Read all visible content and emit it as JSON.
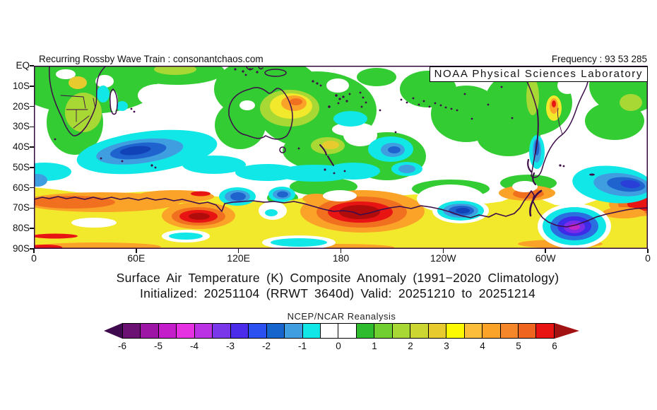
{
  "header": {
    "left": "Recurring Rossby Wave Train : consonantchaos.com",
    "right": "Frequency : 93 53 285"
  },
  "overlay": {
    "source_label": "NOAA Physical Sciences Laboratory"
  },
  "titles": {
    "line1": "Surface Air Temperature (K) Composite Anomaly (1991−2020 Climatology)",
    "line2": "Initialized: 20251104 (RRWT 3640d) Valid: 20251210 to 20251214"
  },
  "axes": {
    "y_ticks": [
      "EQ",
      "10S",
      "20S",
      "30S",
      "40S",
      "50S",
      "60S",
      "70S",
      "80S",
      "90S"
    ],
    "x_ticks": [
      "0",
      "60E",
      "120E",
      "180",
      "120W",
      "60W",
      "0"
    ]
  },
  "colorbar": {
    "label": "NCEP/NCAR Reanalysis",
    "tick_labels": [
      "-6",
      "-5",
      "-4",
      "-3",
      "-2",
      "-1",
      "0",
      "1",
      "2",
      "3",
      "4",
      "5",
      "6"
    ],
    "segment_colors": [
      "#6b1173",
      "#9c15a5",
      "#c31ec9",
      "#e531e1",
      "#bb31e4",
      "#7a37ea",
      "#4b2ceb",
      "#2c50f0",
      "#1565cd",
      "#3f9ee0",
      "#12e7e7",
      "#ffffff",
      "#ffffff",
      "#2ebc2e",
      "#71cf31",
      "#a8d833",
      "#ccd633",
      "#e7cb2e",
      "#fdf900",
      "#fcbe3a",
      "#fba328",
      "#f6862a",
      "#ef641f",
      "#e81414"
    ],
    "left_arrow_color": "#3f0a4d",
    "right_arrow_color": "#a31212"
  },
  "chart_data": {
    "type": "heatmap",
    "subtype": "filled_contour_map",
    "title": "Surface Air Temperature (K) Composite Anomaly (1991−2020 Climatology)",
    "subtitle": "Initialized: 20251104 (RRWT 3640d) Valid: 20251210 to 20251214",
    "dataset": "NCEP/NCAR Reanalysis",
    "attribution": "NOAA Physical Sciences Laboratory",
    "units": "K",
    "extent": {
      "lon": [
        0,
        360
      ],
      "lat_labels": [
        "EQ",
        "90S"
      ],
      "lat": [
        0,
        -90
      ]
    },
    "xlabel": "",
    "ylabel": "",
    "grid": false,
    "legend_position": "bottom-colorbar",
    "colorbar_levels": [
      -6,
      -5.5,
      -5,
      -4.5,
      -4,
      -3.5,
      -3,
      -2.5,
      -2,
      -1.5,
      -1,
      -0.5,
      0,
      0.5,
      1,
      1.5,
      2,
      2.5,
      3,
      3.5,
      4,
      4.5,
      5,
      5.5,
      6
    ],
    "coastline_color": "#3d0d49",
    "background_anomaly": "0 to +1 K (white/green) over most tropics and subtropics",
    "anomaly_features": [
      {
        "region": "south Indian Ocean",
        "lon": "50E-80E",
        "lat": "40S-48S",
        "value_K": -2.5
      },
      {
        "region": "central Australia",
        "lon": "128E-140E",
        "lat": "20S-28S",
        "value_K": 4.5
      },
      {
        "region": "circumpolar Antarctic band",
        "lon": "0-360",
        "lat": "60S-90S",
        "value_K": "+2 to +4"
      },
      {
        "region": "East Antarctica (Wilkes Land)",
        "lon": "88E-105E",
        "lat": "71S-77S",
        "value_K": 6
      },
      {
        "region": "Indian-sector Southern Ocean band",
        "lon": "0-80E",
        "lat": "62S-68S",
        "value_K": "+4 to +5.5"
      },
      {
        "region": "Ross Sea / 180 sector maximum",
        "lon": "175E-205E",
        "lat": "66S-79S",
        "value_K": 6
      },
      {
        "region": "Weddell Sea cold core",
        "lon": "55W-35W",
        "lat": "74S-82S",
        "value_K": -5
      },
      {
        "region": "Amundsen coast cold blob",
        "lon": "120W-100W",
        "lat": "68S-75S",
        "value_K": -2.5
      },
      {
        "region": "South Atlantic cold pool",
        "lon": "40W-10W",
        "lat": "52S-63S",
        "value_K": -3
      },
      {
        "region": "south of Australia cold blobs",
        "lon": "113E-125E and 140E-150E",
        "lat": "60S-66S",
        "value_K": -2
      },
      {
        "region": "Greenwich-edge warm core",
        "lon": "350E-360E",
        "lat": "64S-74S",
        "value_K": 5.5
      },
      {
        "region": "Chile coast warm streak",
        "lon": "70W",
        "lat": "18S-25S",
        "value_K": 5
      },
      {
        "region": "SE Pacific cool patches",
        "lon": "155W-145W",
        "lat": "38S-52S",
        "value_K": -2
      }
    ]
  }
}
